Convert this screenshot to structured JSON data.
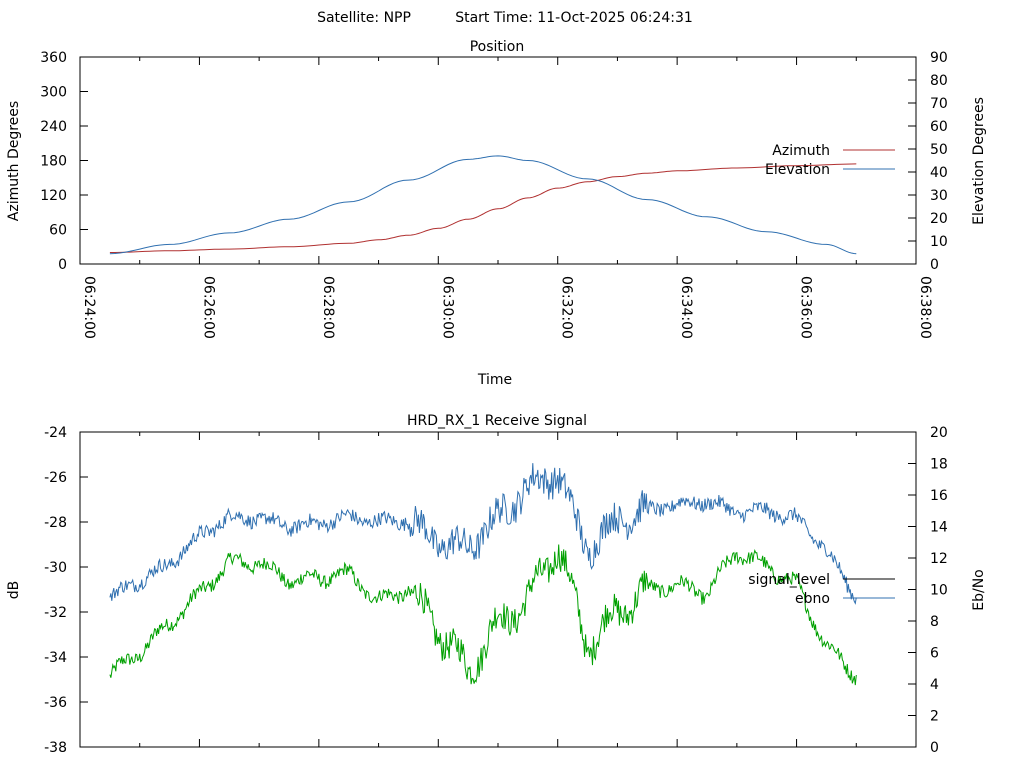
{
  "header": {
    "satellite_label": "Satellite: NPP",
    "start_time_label": "Start Time: 11-Oct-2025 06:24:31"
  },
  "chart_data": [
    {
      "id": "position",
      "type": "line",
      "title": "Position",
      "xlabel": "Time",
      "ylabel": "Azimuth Degrees",
      "y2label": "Elevation Degrees",
      "xlim": [
        "06:24:00",
        "06:38:00"
      ],
      "x_ticks": [
        "06:24:00",
        "06:26:00",
        "06:28:00",
        "06:30:00",
        "06:32:00",
        "06:34:00",
        "06:36:00",
        "06:38:00"
      ],
      "ylim": [
        0,
        360
      ],
      "y_ticks": [
        0,
        60,
        120,
        180,
        240,
        300,
        360
      ],
      "y2lim": [
        0,
        90
      ],
      "y2_ticks": [
        0,
        10,
        20,
        30,
        40,
        50,
        60,
        70,
        80,
        90
      ],
      "grid": false,
      "legend_position": "right",
      "series": [
        {
          "name": "Azimuth",
          "axis": "y",
          "color": "#b03030",
          "x": [
            "06:24:30",
            "06:25:30",
            "06:26:30",
            "06:27:30",
            "06:28:30",
            "06:29:00",
            "06:29:30",
            "06:30:00",
            "06:30:30",
            "06:31:00",
            "06:31:30",
            "06:32:00",
            "06:32:30",
            "06:33:00",
            "06:33:30",
            "06:34:00",
            "06:35:00",
            "06:36:00",
            "06:37:00"
          ],
          "values": [
            20,
            23,
            26,
            30,
            36,
            42,
            50,
            62,
            78,
            96,
            115,
            132,
            143,
            152,
            158,
            162,
            167,
            171,
            174
          ]
        },
        {
          "name": "Elevation",
          "axis": "y2",
          "color": "#3070b0",
          "x": [
            "06:24:30",
            "06:25:30",
            "06:26:30",
            "06:27:30",
            "06:28:30",
            "06:29:30",
            "06:30:30",
            "06:31:00",
            "06:31:30",
            "06:32:30",
            "06:33:30",
            "06:34:30",
            "06:35:30",
            "06:36:30",
            "06:37:00"
          ],
          "values": [
            4.5,
            8.5,
            13.5,
            19.5,
            27,
            36.5,
            45.5,
            47,
            45,
            37,
            28,
            20.5,
            14,
            8.5,
            4.5
          ]
        }
      ]
    },
    {
      "id": "signal",
      "type": "line",
      "title": "HRD_RX_1 Receive Signal",
      "ylabel": "dB",
      "y2label": "Eb/No",
      "xlim": [
        "06:24:00",
        "06:38:00"
      ],
      "ylim": [
        -38,
        -24
      ],
      "y_ticks": [
        -38,
        -36,
        -34,
        -32,
        -30,
        -28,
        -26,
        -24
      ],
      "y2lim": [
        0,
        20
      ],
      "y2_ticks": [
        0,
        2,
        4,
        6,
        8,
        10,
        12,
        14,
        16,
        18,
        20
      ],
      "grid": false,
      "legend_position": "right",
      "series": [
        {
          "name": "signal_level",
          "axis": "y",
          "color": "#000000",
          "x": [
            "06:24:30",
            "06:25:00",
            "06:25:30",
            "06:26:00",
            "06:26:30",
            "06:27:00",
            "06:27:30",
            "06:28:00",
            "06:28:30",
            "06:29:00",
            "06:29:30",
            "06:30:00",
            "06:30:30",
            "06:31:00",
            "06:31:30",
            "06:32:00",
            "06:32:30",
            "06:33:00",
            "06:33:30",
            "06:34:00",
            "06:34:30",
            "06:35:00",
            "06:35:30",
            "06:36:00",
            "06:36:30",
            "06:37:00"
          ],
          "values": [
            -34.8,
            -33.8,
            -32.5,
            -31.2,
            -29.8,
            -29.8,
            -30.6,
            -30.5,
            -30.3,
            -31.5,
            -31.0,
            -32.8,
            -34.6,
            -32.5,
            -31.5,
            -29.0,
            -33.5,
            -32.0,
            -31.0,
            -30.8,
            -31.2,
            -29.3,
            -30.0,
            -30.8,
            -33.5,
            -34.8
          ]
        },
        {
          "name": "ebno",
          "axis": "y2",
          "color": "#3070b0",
          "x": [
            "06:24:30",
            "06:25:00",
            "06:25:30",
            "06:26:00",
            "06:26:30",
            "06:27:00",
            "06:27:30",
            "06:28:00",
            "06:28:30",
            "06:29:00",
            "06:29:30",
            "06:30:00",
            "06:30:30",
            "06:31:00",
            "06:31:30",
            "06:32:00",
            "06:32:30",
            "06:33:00",
            "06:33:30",
            "06:34:00",
            "06:34:30",
            "06:35:00",
            "06:35:30",
            "06:36:00",
            "06:36:30",
            "06:37:00"
          ],
          "values": [
            9.5,
            10.6,
            11.6,
            13.4,
            14.6,
            14.5,
            14.0,
            14.2,
            14.6,
            14.3,
            14.4,
            13.0,
            12.6,
            14.6,
            16.5,
            17.4,
            12.5,
            14.5,
            15.0,
            15.4,
            15.6,
            14.9,
            15.0,
            14.5,
            12.5,
            9.5
          ]
        }
      ]
    }
  ]
}
